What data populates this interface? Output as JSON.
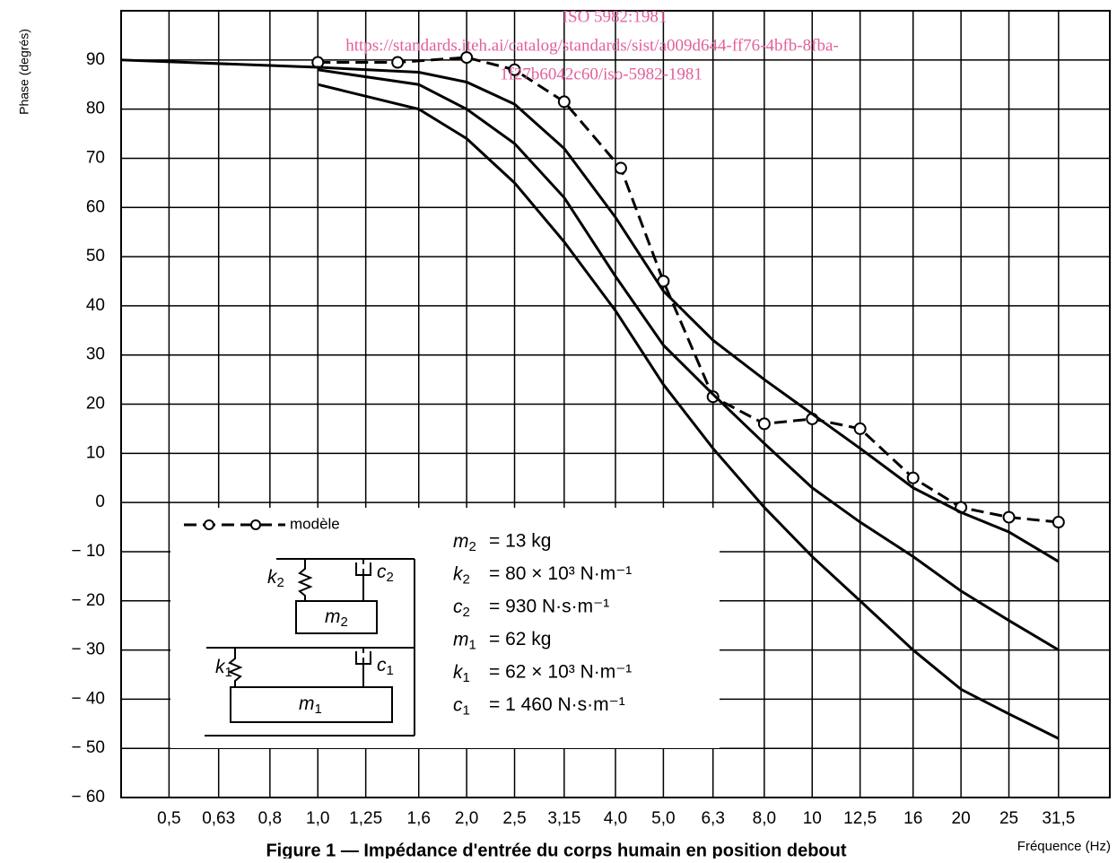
{
  "chart_data": {
    "type": "line",
    "y_label": "Phase (degrés)",
    "x_label": "Fréquence (Hz)",
    "caption": "Figure 1 — Impédance d'entrée du corps humain en position debout",
    "watermark": [
      "ISO 5982:1981",
      "https://standards.iteh.ai/catalog/standards/sist/a009d644-ff76-4bfb-8fba-",
      "1f27b6042c60/iso-5982-1981"
    ],
    "xscale": "log",
    "xlim": [
      0.4,
      40
    ],
    "xticks": [
      {
        "value": 0.5,
        "label": "0,5"
      },
      {
        "value": 0.63,
        "label": "0,63"
      },
      {
        "value": 0.8,
        "label": "0,8"
      },
      {
        "value": 1.0,
        "label": "1,0"
      },
      {
        "value": 1.25,
        "label": "1,25"
      },
      {
        "value": 1.6,
        "label": "1,6"
      },
      {
        "value": 2.0,
        "label": "2,0"
      },
      {
        "value": 2.5,
        "label": "2,5"
      },
      {
        "value": 3.15,
        "label": "3,15"
      },
      {
        "value": 4.0,
        "label": "4,0"
      },
      {
        "value": 5.0,
        "label": "5,0"
      },
      {
        "value": 6.3,
        "label": "6,3"
      },
      {
        "value": 8.0,
        "label": "8,0"
      },
      10,
      {
        "value": 12.5,
        "label": "12,5"
      },
      16,
      20,
      25,
      {
        "value": 31.5,
        "label": "31,5"
      }
    ],
    "ylim": [
      -60,
      100
    ],
    "yticks": [
      {
        "value": -60,
        "label": "− 60"
      },
      {
        "value": -50,
        "label": "− 50"
      },
      {
        "value": -40,
        "label": "− 40"
      },
      {
        "value": -30,
        "label": "− 30"
      },
      {
        "value": -20,
        "label": "− 20"
      },
      {
        "value": -10,
        "label": "− 10"
      },
      0,
      10,
      20,
      30,
      40,
      50,
      60,
      70,
      80,
      90
    ],
    "grid": true,
    "series": [
      {
        "name": "modèle",
        "color": "#000000",
        "dashed": true,
        "markers": true,
        "x": [
          1.0,
          1.45,
          2.0,
          2.5,
          3.15,
          4.1,
          5.0,
          6.3,
          8.0,
          10,
          12.5,
          16,
          20,
          25,
          31.5
        ],
        "values": [
          89.5,
          89.5,
          90.5,
          88,
          81.5,
          68,
          45,
          21.5,
          16,
          17,
          15,
          5,
          -1,
          -3,
          -4
        ]
      },
      {
        "color": "#000000",
        "x": [
          0.4,
          1.0,
          1.6,
          2.0,
          2.5,
          3.15,
          4.0,
          5.0,
          6.3,
          8.0,
          10,
          12.5,
          16,
          20,
          25,
          31.5
        ],
        "values": [
          90,
          88.5,
          87.5,
          85.5,
          81,
          72,
          58,
          43,
          33,
          25,
          18,
          11,
          3,
          -2,
          -6,
          -12
        ]
      },
      {
        "color": "#000000",
        "x": [
          1.0,
          1.6,
          2.0,
          2.5,
          3.15,
          4.0,
          5.0,
          6.3,
          8.0,
          10,
          12.5,
          16,
          20,
          25,
          31.5
        ],
        "values": [
          88,
          85,
          80,
          73,
          62,
          46,
          32,
          22,
          12,
          3,
          -4,
          -11,
          -18,
          -24,
          -30
        ]
      },
      {
        "color": "#000000",
        "x": [
          1.0,
          1.6,
          2.0,
          2.5,
          3.15,
          4.0,
          5.0,
          6.3,
          8.0,
          10,
          12.5,
          16,
          20,
          25,
          31.5
        ],
        "values": [
          85,
          80,
          74,
          65,
          53,
          39,
          24,
          11,
          -1,
          -11,
          -20,
          -30,
          -38,
          -43,
          -48
        ]
      }
    ],
    "diagram_labels": [
      {
        "symbol": "k",
        "sub": "2"
      },
      {
        "symbol": "c",
        "sub": "2"
      },
      {
        "symbol": "m",
        "sub": "2"
      },
      {
        "symbol": "k",
        "sub": "1"
      },
      {
        "symbol": "c",
        "sub": "1"
      },
      {
        "symbol": "m",
        "sub": "1"
      }
    ],
    "parameters": [
      {
        "symbol": "m",
        "sub": "2",
        "value": "= 13 kg"
      },
      {
        "symbol": "k",
        "sub": "2",
        "value": "= 80 × 10³ N·m⁻¹"
      },
      {
        "symbol": "c",
        "sub": "2",
        "value": "= 930 N·s·m⁻¹"
      },
      {
        "symbol": "m",
        "sub": "1",
        "value": "= 62 kg"
      },
      {
        "symbol": "k",
        "sub": "1",
        "value": "= 62 × 10³ N·m⁻¹"
      },
      {
        "symbol": "c",
        "sub": "1",
        "value": "= 1 460 N·s·m⁻¹"
      }
    ]
  }
}
